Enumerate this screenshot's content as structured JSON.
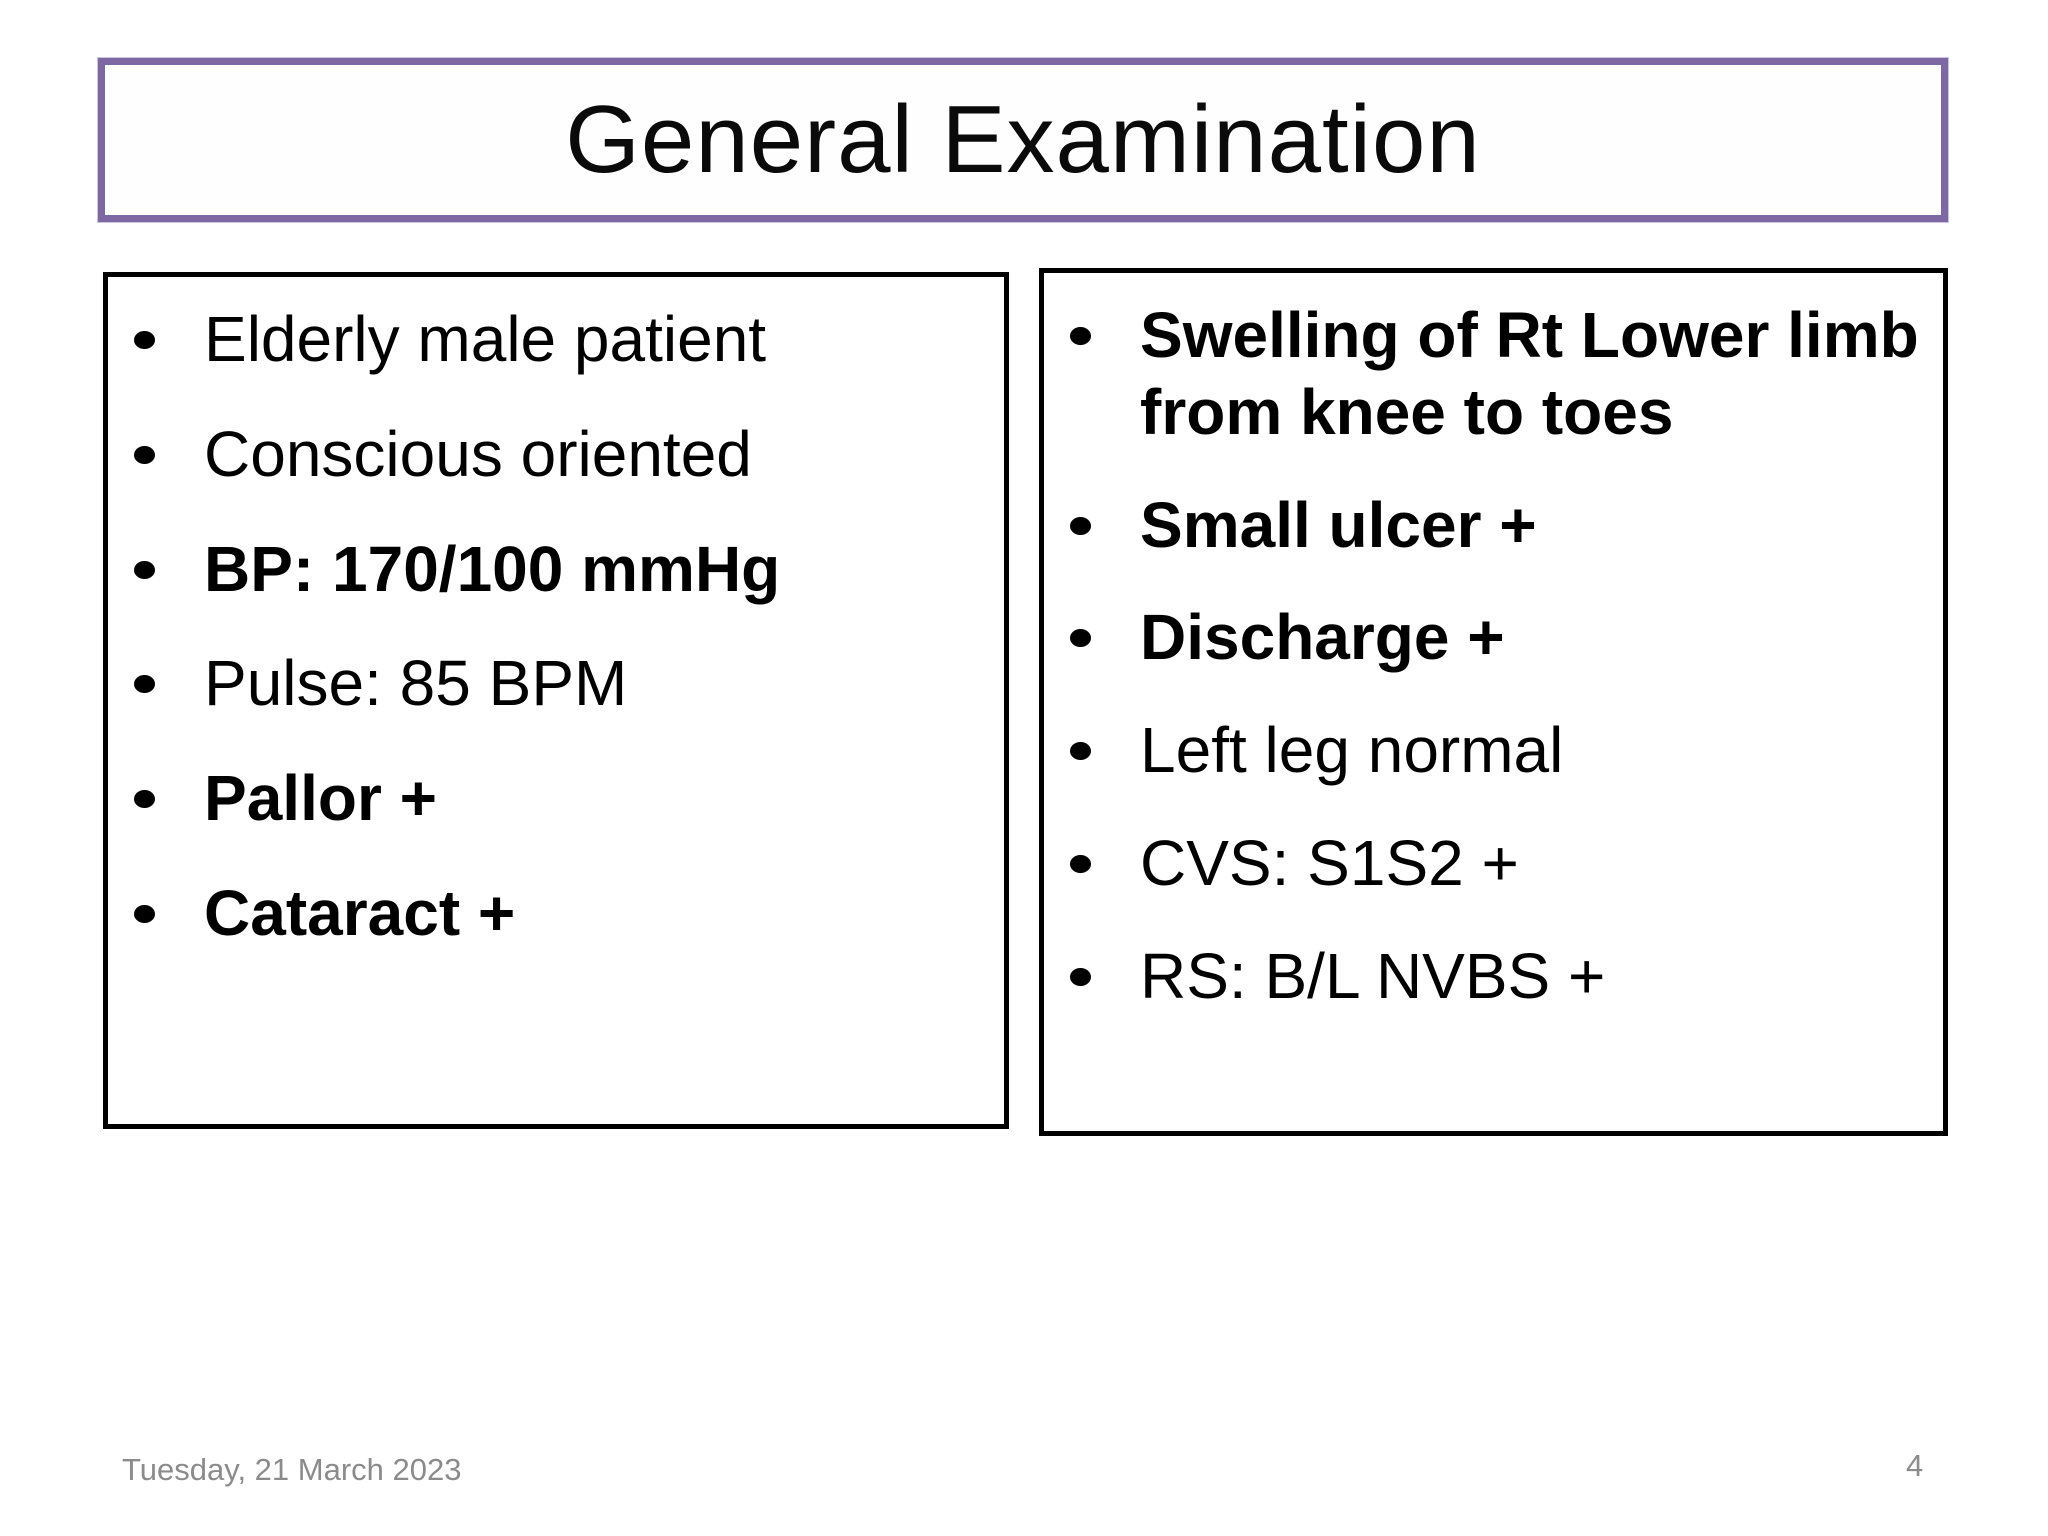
{
  "slide": {
    "title": "General Examination",
    "left_box": {
      "items": [
        {
          "text": "Elderly male patient",
          "bold": false
        },
        {
          "text": "Conscious oriented",
          "bold": false
        },
        {
          "text": "BP: 170/100 mmHg",
          "bold": true
        },
        {
          "text": "Pulse: 85 BPM",
          "bold": false
        },
        {
          "text": "Pallor +",
          "bold": true
        },
        {
          "text": "Cataract +",
          "bold": true
        }
      ]
    },
    "right_box": {
      "items": [
        {
          "text": "Swelling of Rt Lower limb from knee to toes",
          "bold": true
        },
        {
          "text": "Small ulcer +",
          "bold": true
        },
        {
          "text": "Discharge +",
          "bold": true
        },
        {
          "text": "Left leg normal",
          "bold": false
        },
        {
          "text": "CVS: S1S2 +",
          "bold": false
        },
        {
          "text": "RS: B/L NVBS +",
          "bold": false
        }
      ]
    },
    "footer": {
      "date": "Tuesday, 21 March 2023",
      "page_number": "4"
    },
    "colors": {
      "title_border": "#7d68a4",
      "box_border": "#000000",
      "text": "#000000",
      "footer_text": "#8b8b8b",
      "background": "#ffffff"
    }
  }
}
